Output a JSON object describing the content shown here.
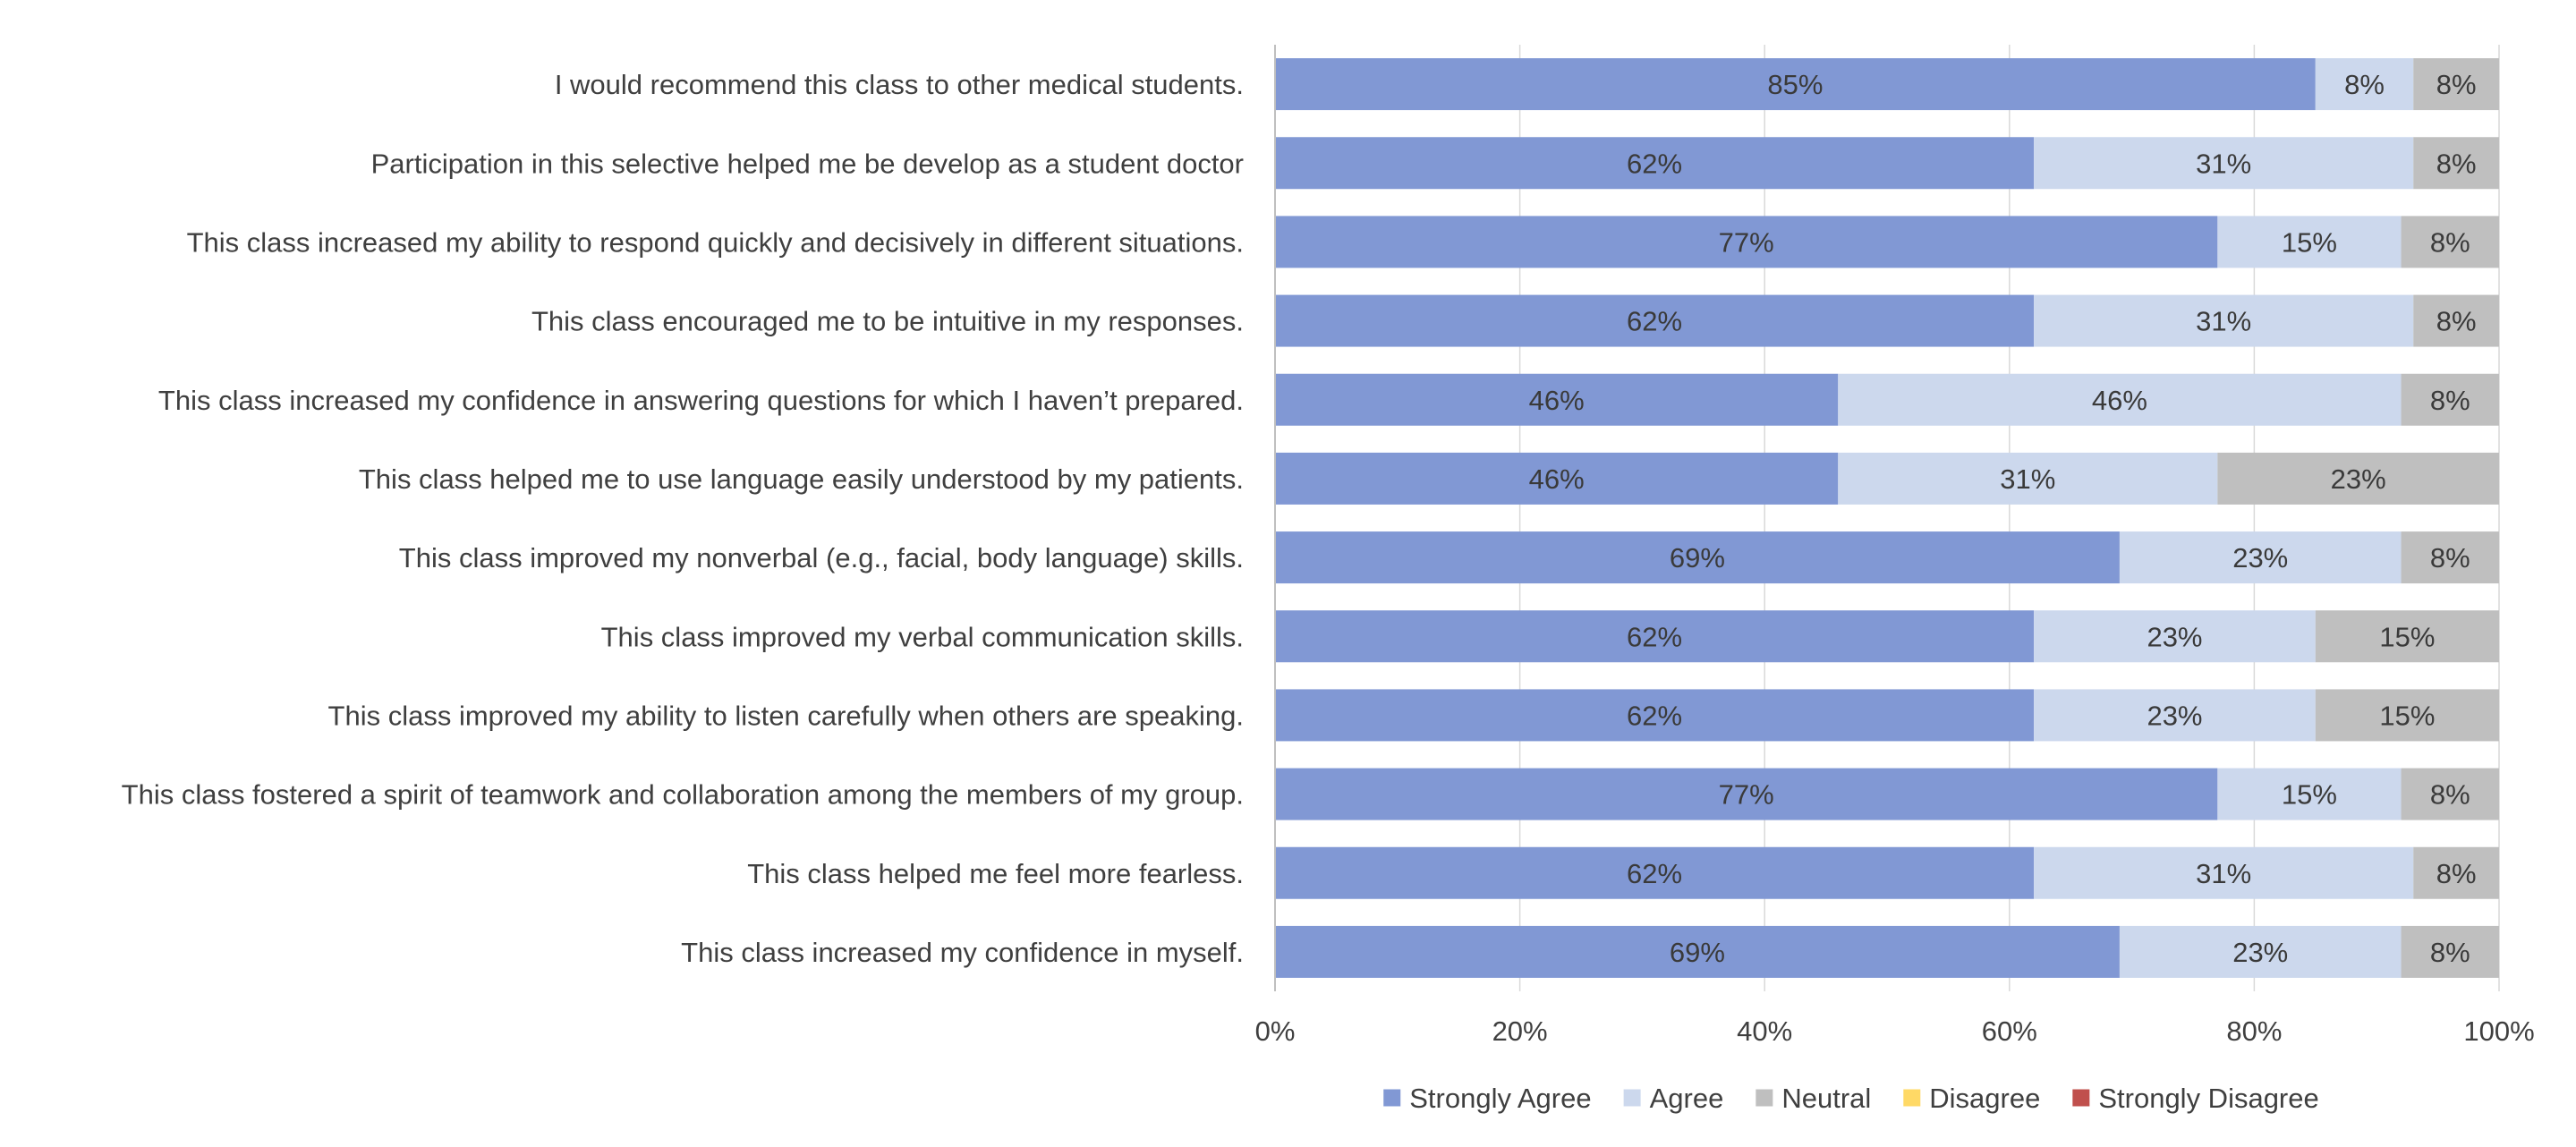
{
  "chart_data": {
    "type": "bar",
    "orientation": "horizontal",
    "stacked": "percent",
    "title": "",
    "xlabel": "",
    "ylabel": "",
    "xlim": [
      0,
      100
    ],
    "x_ticks": [
      "0%",
      "20%",
      "40%",
      "60%",
      "80%",
      "100%"
    ],
    "grid": true,
    "legend_position": "bottom",
    "categories": [
      "I would recommend this class to other medical students.",
      "Participation in this selective helped me be develop as a student doctor",
      "This class increased my ability to respond quickly and decisively in different situations.",
      "This class encouraged me to be intuitive in my responses.",
      "This class increased my confidence in answering questions for which I haven’t prepared.",
      "This class helped me to use language easily understood by my patients.",
      "This class improved my nonverbal (e.g., facial, body language) skills.",
      "This class improved my verbal communication skills.",
      "This class improved my ability to listen carefully when others are speaking.",
      "This class fostered a spirit of teamwork and collaboration among the members of my group.",
      "This class helped me feel more fearless.",
      "This class increased my confidence in myself."
    ],
    "series": [
      {
        "name": "Strongly Agree",
        "color": "#8198d4",
        "values": [
          85,
          62,
          77,
          62,
          46,
          46,
          69,
          62,
          62,
          77,
          62,
          69
        ],
        "labels": [
          "85%",
          "62%",
          "77%",
          "62%",
          "46%",
          "46%",
          "69%",
          "62%",
          "62%",
          "77%",
          "62%",
          "69%"
        ]
      },
      {
        "name": "Agree",
        "color": "#ccd8ed",
        "values": [
          8,
          31,
          15,
          31,
          46,
          31,
          23,
          23,
          23,
          15,
          31,
          23
        ],
        "labels": [
          "8%",
          "31%",
          "15%",
          "31%",
          "46%",
          "31%",
          "23%",
          "23%",
          "23%",
          "15%",
          "31%",
          "23%"
        ]
      },
      {
        "name": "Neutral",
        "color": "#bfbfbf",
        "values": [
          8,
          8,
          8,
          8,
          8,
          23,
          8,
          15,
          15,
          8,
          8,
          8
        ],
        "labels": [
          "8%",
          "8%",
          "8%",
          "8%",
          "8%",
          "23%",
          "8%",
          "15%",
          "15%",
          "8%",
          "8%",
          "8%"
        ]
      },
      {
        "name": "Disagree",
        "color": "#ffd966",
        "values": [
          0,
          0,
          0,
          0,
          0,
          0,
          0,
          0,
          0,
          0,
          0,
          0
        ],
        "labels": []
      },
      {
        "name": "Strongly Disagree",
        "color": "#c0504d",
        "values": [
          0,
          0,
          0,
          0,
          0,
          0,
          0,
          0,
          0,
          0,
          0,
          0
        ],
        "labels": []
      }
    ]
  }
}
